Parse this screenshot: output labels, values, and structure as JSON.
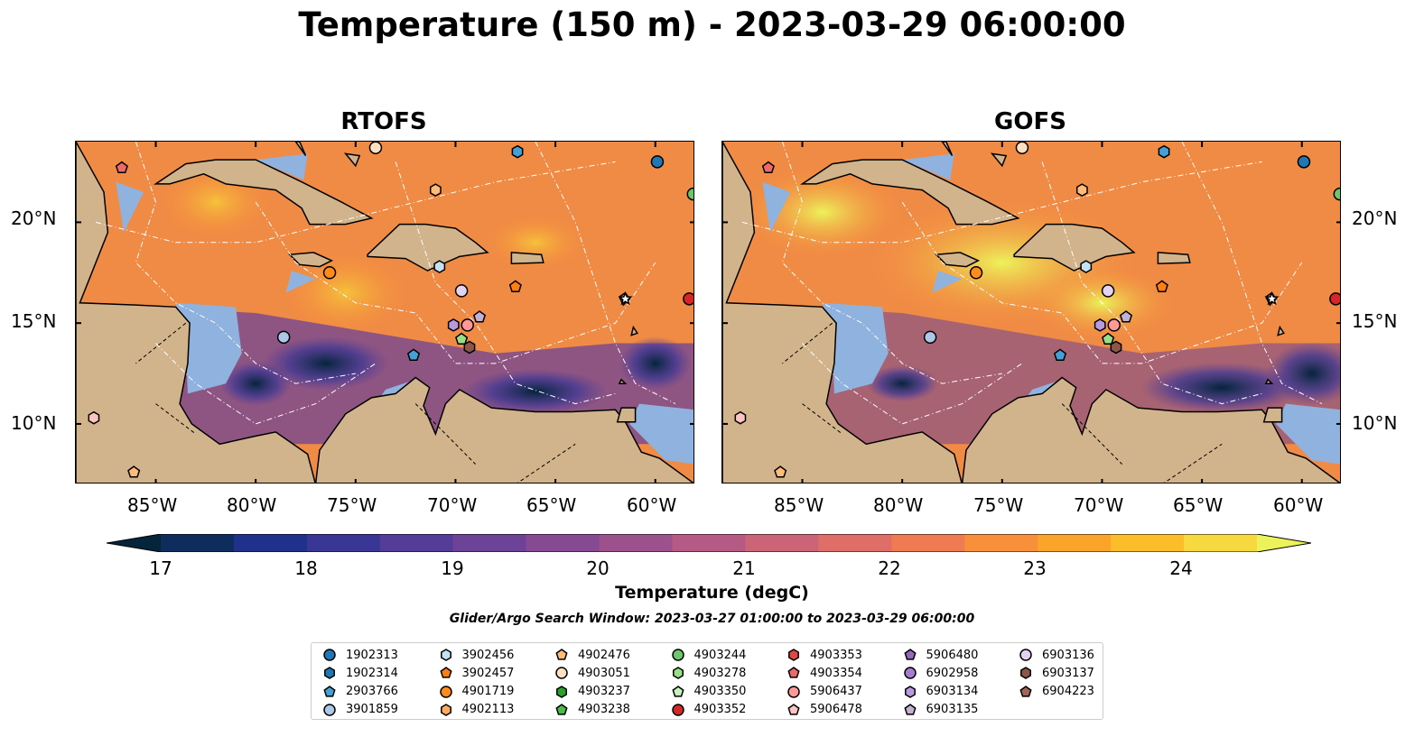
{
  "title": "Temperature (150 m) - 2023-03-29 06:00:00",
  "panels": [
    {
      "title": "RTOFS"
    },
    {
      "title": "GOFS"
    }
  ],
  "x_ticks": [
    "85°W",
    "80°W",
    "75°W",
    "70°W",
    "65°W",
    "60°W"
  ],
  "y_ticks": [
    "20°N",
    "15°N",
    "10°N"
  ],
  "colorbar": {
    "label": "Temperature (degC)",
    "ticks": [
      "17",
      "18",
      "19",
      "20",
      "21",
      "22",
      "23",
      "24"
    ],
    "min": 16.75,
    "max": 24.5,
    "step": 0.5,
    "colors": [
      "#04253a",
      "#0e2c5c",
      "#1f318a",
      "#3a3695",
      "#553c99",
      "#6d4397",
      "#854a92",
      "#9d518c",
      "#b55a84",
      "#cc6478",
      "#df6e68",
      "#ef7b52",
      "#f88f3a",
      "#fba42a",
      "#fbbd2a",
      "#f6d93e",
      "#ecf35a"
    ]
  },
  "search_window": "Glider/Argo Search Window: 2023-03-27 01:00:00 to 2023-03-29 06:00:00",
  "legend": [
    {
      "id": "1902313",
      "color": "#1f77b4",
      "marker": "circle"
    },
    {
      "id": "1902314",
      "color": "#1f77b4",
      "marker": "hexagon"
    },
    {
      "id": "2903766",
      "color": "#46a0d8",
      "marker": "pentagon"
    },
    {
      "id": "3901859",
      "color": "#aec7e8",
      "marker": "circle"
    },
    {
      "id": "3902456",
      "color": "#c6e2f2",
      "marker": "hexagon"
    },
    {
      "id": "3902457",
      "color": "#ff7f0e",
      "marker": "pentagon"
    },
    {
      "id": "4901719",
      "color": "#ff8c1a",
      "marker": "circle"
    },
    {
      "id": "4902113",
      "color": "#ffab5c",
      "marker": "hexagon"
    },
    {
      "id": "4902476",
      "color": "#ffbb78",
      "marker": "pentagon"
    },
    {
      "id": "4903051",
      "color": "#ffe0c0",
      "marker": "circle"
    },
    {
      "id": "4903237",
      "color": "#2ca02c",
      "marker": "hexagon"
    },
    {
      "id": "4903238",
      "color": "#4cbb4c",
      "marker": "pentagon"
    },
    {
      "id": "4903244",
      "color": "#6dc56d",
      "marker": "circle"
    },
    {
      "id": "4903278",
      "color": "#98df8a",
      "marker": "hexagon"
    },
    {
      "id": "4903350",
      "color": "#c8f0c0",
      "marker": "pentagon"
    },
    {
      "id": "4903352",
      "color": "#d62728",
      "marker": "circle"
    },
    {
      "id": "4903353",
      "color": "#e04848",
      "marker": "hexagon"
    },
    {
      "id": "4903354",
      "color": "#ee6a6a",
      "marker": "pentagon"
    },
    {
      "id": "5906437",
      "color": "#ff9896",
      "marker": "circle"
    },
    {
      "id": "5906478",
      "color": "#ffc4c2",
      "marker": "pentagon"
    },
    {
      "id": "5906480",
      "color": "#9467bd",
      "marker": "pentagon"
    },
    {
      "id": "6902958",
      "color": "#a57fcf",
      "marker": "circle"
    },
    {
      "id": "6903134",
      "color": "#b89ae0",
      "marker": "hexagon"
    },
    {
      "id": "6903135",
      "color": "#c5b0d5",
      "marker": "pentagon"
    },
    {
      "id": "6903136",
      "color": "#e2d4f0",
      "marker": "circle"
    },
    {
      "id": "6903137",
      "color": "#8c564b",
      "marker": "hexagon"
    },
    {
      "id": "6904223",
      "color": "#a0665a",
      "marker": "pentagon"
    }
  ],
  "map_extent": {
    "lon_min": -89,
    "lon_max": -58,
    "lat_min": 7,
    "lat_max": 24
  },
  "floats": [
    {
      "lon": -86.7,
      "lat": 22.7,
      "color": "#ee6a6a",
      "marker": "pentagon"
    },
    {
      "lon": -74.0,
      "lat": 23.7,
      "color": "#ffe0c0",
      "marker": "circle"
    },
    {
      "lon": -66.9,
      "lat": 23.5,
      "color": "#46a0d8",
      "marker": "hexagon"
    },
    {
      "lon": -59.9,
      "lat": 23.0,
      "color": "#1f77b4",
      "marker": "circle"
    },
    {
      "lon": -58.1,
      "lat": 21.4,
      "color": "#6dc56d",
      "marker": "circle"
    },
    {
      "lon": -71.0,
      "lat": 21.6,
      "color": "#ffbb78",
      "marker": "hexagon"
    },
    {
      "lon": -76.3,
      "lat": 17.5,
      "color": "#ff8c1a",
      "marker": "circle"
    },
    {
      "lon": -70.8,
      "lat": 17.8,
      "color": "#c6e2f2",
      "marker": "hexagon"
    },
    {
      "lon": -69.7,
      "lat": 16.6,
      "color": "#e2d4f0",
      "marker": "circle"
    },
    {
      "lon": -67.0,
      "lat": 16.8,
      "color": "#ff7f0e",
      "marker": "pentagon"
    },
    {
      "lon": -61.5,
      "lat": 16.2,
      "color": "#ffffff",
      "marker": "star"
    },
    {
      "lon": -58.3,
      "lat": 16.2,
      "color": "#d62728",
      "marker": "circle"
    },
    {
      "lon": -78.6,
      "lat": 14.3,
      "color": "#aec7e8",
      "marker": "circle"
    },
    {
      "lon": -70.1,
      "lat": 14.9,
      "color": "#b89ae0",
      "marker": "hexagon"
    },
    {
      "lon": -69.4,
      "lat": 14.9,
      "color": "#ff9896",
      "marker": "circle"
    },
    {
      "lon": -68.8,
      "lat": 15.3,
      "color": "#c5b0d5",
      "marker": "pentagon"
    },
    {
      "lon": -69.7,
      "lat": 14.2,
      "color": "#98df8a",
      "marker": "pentagon"
    },
    {
      "lon": -69.3,
      "lat": 13.8,
      "color": "#8c564b",
      "marker": "hexagon"
    },
    {
      "lon": -72.1,
      "lat": 13.4,
      "color": "#46a0d8",
      "marker": "pentagon"
    },
    {
      "lon": -88.1,
      "lat": 10.3,
      "color": "#ffc4c2",
      "marker": "hexagon"
    },
    {
      "lon": -86.1,
      "lat": 7.6,
      "color": "#ffbb78",
      "marker": "pentagon"
    }
  ]
}
